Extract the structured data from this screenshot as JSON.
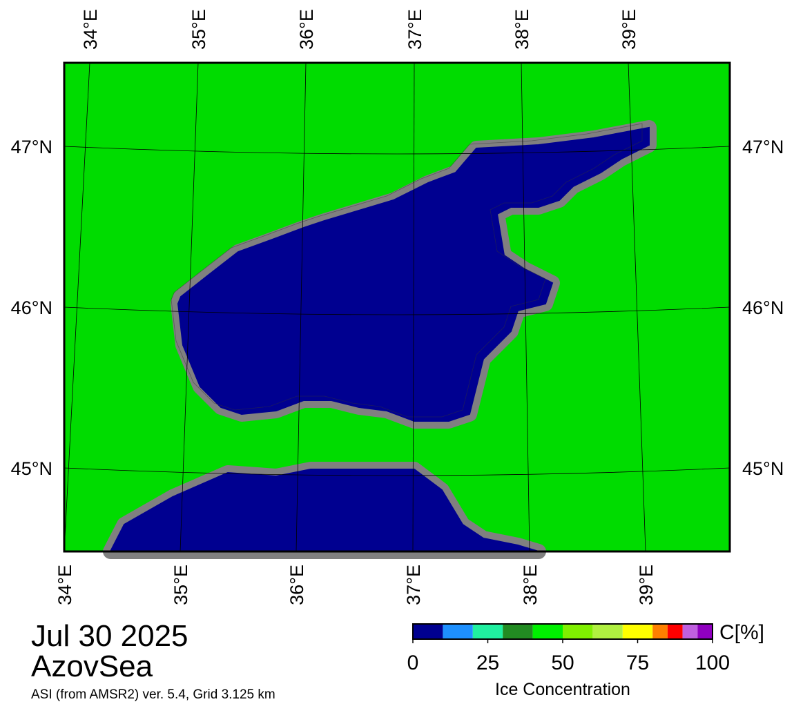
{
  "map": {
    "top_lon_labels": [
      "34°E",
      "35°E",
      "36°E",
      "37°E",
      "38°E",
      "39°E"
    ],
    "bottom_lon_labels": [
      "34°E",
      "35°E",
      "36°E",
      "37°E",
      "38°E",
      "39°E"
    ],
    "left_lat_labels": [
      "47°N",
      "46°N",
      "45°N"
    ],
    "right_lat_labels": [
      "47°N",
      "46°N",
      "45°N"
    ],
    "land_color": "#00dc00",
    "water_color": "#000090",
    "coast_color": "#808080"
  },
  "footer": {
    "date": "Jul 30 2025",
    "region": "AzovSea",
    "caption": "ASI (from AMSR2) ver. 5.4,  Grid 3.125 km"
  },
  "colorbar": {
    "edges": [
      0,
      10,
      20,
      30,
      40,
      50,
      60,
      70,
      80,
      85,
      90,
      95,
      100
    ],
    "colors": [
      "#000090",
      "#1e90ff",
      "#20f0a0",
      "#228b22",
      "#00f000",
      "#80f000",
      "#b0f040",
      "#ffff00",
      "#ff8000",
      "#ff0000",
      "#c060e0",
      "#9000c0"
    ],
    "lim": [
      0,
      100
    ],
    "ticks": [
      0,
      25,
      50,
      75,
      100
    ],
    "unit": "C[%]",
    "label": "Ice Concentration"
  }
}
